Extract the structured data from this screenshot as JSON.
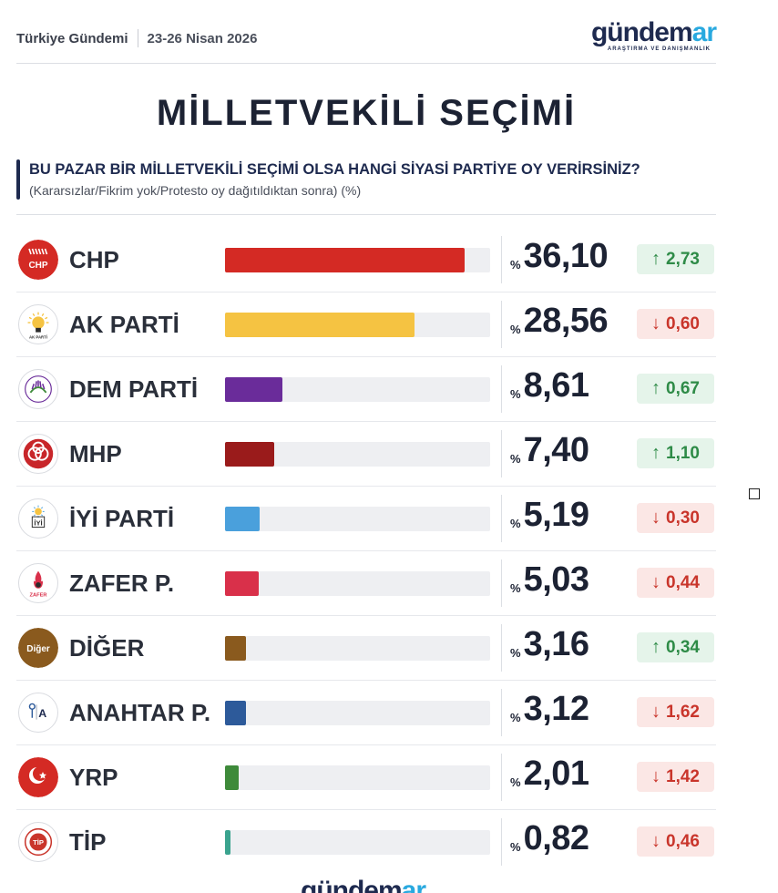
{
  "header": {
    "source": "Türkiye Gündemi",
    "date": "23-26 Nisan 2026",
    "brand_main": "gündem",
    "brand_accent": "ar",
    "brand_sub": "ARAŞTIRMA VE DANIŞMANLIK"
  },
  "title": "MİLLETVEKİLİ SEÇİMİ",
  "question": {
    "title": "BU PAZAR BİR MİLLETVEKİLİ SEÇİMİ OLSA HANGİ SİYASİ PARTİYE OY VERİRSİNİZ?",
    "subtitle": "(Kararsızlar/Fikrim yok/Protesto oy dağıtıldıktan sonra) (%)"
  },
  "chart_data": {
    "type": "bar",
    "orientation": "horizontal",
    "title": "MİLLETVEKİLİ SEÇİMİ",
    "subtitle": "BU PAZAR BİR MİLLETVEKİLİ SEÇİMİ OLSA HANGİ SİYASİ PARTİYE OY VERİRSİNİZ?",
    "unit": "%",
    "xlim": [
      0,
      40
    ],
    "categories": [
      "CHP",
      "AK PARTİ",
      "DEM PARTİ",
      "MHP",
      "İYİ PARTİ",
      "ZAFER P.",
      "DİĞER",
      "ANAHTAR P.",
      "YRP",
      "TİP"
    ],
    "values": [
      36.1,
      28.56,
      8.61,
      7.4,
      5.19,
      5.03,
      3.16,
      3.12,
      2.01,
      0.82
    ],
    "value_labels": [
      "36,10",
      "28,56",
      "8,61",
      "7,40",
      "5,19",
      "5,03",
      "3,16",
      "3,12",
      "2,01",
      "0,82"
    ],
    "changes": [
      2.73,
      -0.6,
      0.67,
      1.1,
      -0.3,
      -0.44,
      0.34,
      -1.62,
      -1.42,
      -0.46
    ],
    "change_labels": [
      "2,73",
      "0,60",
      "0,67",
      "1,10",
      "0,30",
      "0,44",
      "0,34",
      "1,62",
      "1,42",
      "0,46"
    ],
    "colors": [
      "#d42a24",
      "#f5c342",
      "#6a2c9a",
      "#9a1b1b",
      "#4aa0dc",
      "#d9304a",
      "#8a5a1e",
      "#2d5a9a",
      "#3e8a3a",
      "#3aa38e"
    ]
  },
  "rows": [
    {
      "name": "CHP",
      "logo": "chp-logo",
      "logo_text": "CHP"
    },
    {
      "name": "AK PARTİ",
      "logo": "akparti-logo",
      "logo_text": "AK PARTİ"
    },
    {
      "name": "DEM PARTİ",
      "logo": "dem-logo",
      "logo_text": ""
    },
    {
      "name": "MHP",
      "logo": "mhp-logo",
      "logo_text": ""
    },
    {
      "name": "İYİ PARTİ",
      "logo": "iyi-logo",
      "logo_text": "İYİ"
    },
    {
      "name": "ZAFER P.",
      "logo": "zafer-logo",
      "logo_text": "ZAFER"
    },
    {
      "name": "DİĞER",
      "logo": "diger-logo",
      "logo_text": "Diğer"
    },
    {
      "name": "ANAHTAR P.",
      "logo": "anahtar-logo",
      "logo_text": "A"
    },
    {
      "name": "YRP",
      "logo": "yrp-logo",
      "logo_text": ""
    },
    {
      "name": "TİP",
      "logo": "tip-logo",
      "logo_text": "TİP"
    }
  ],
  "labels": {
    "pct_sign": "%",
    "arrow_up": "↑",
    "arrow_down": "↓"
  },
  "footer": {
    "brand_main": "gündem",
    "brand_accent": "ar"
  },
  "colors": {
    "navy": "#1e2a4f",
    "accent": "#29a9df",
    "up": "#2e8b47",
    "down": "#c9352b"
  }
}
